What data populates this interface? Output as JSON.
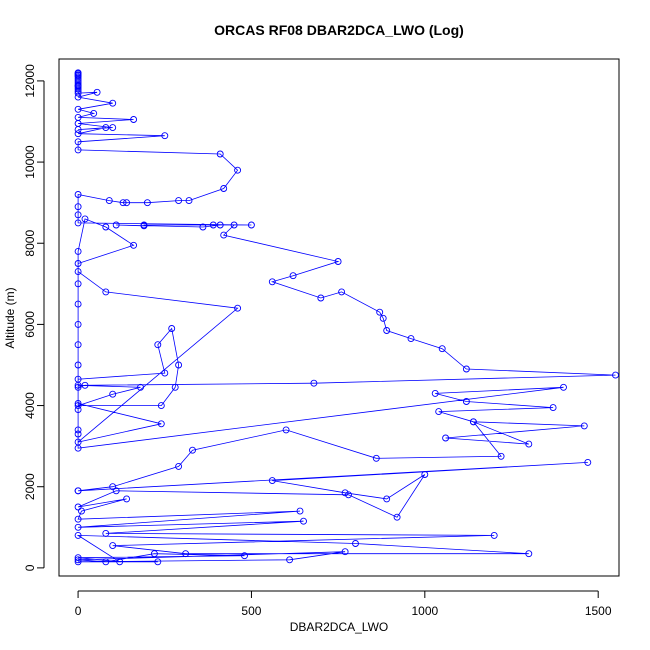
{
  "chart_data": {
    "type": "line",
    "title": "ORCAS RF08 DBAR2DCA_LWO (Log)",
    "xlabel": "DBAR2DCA_LWO",
    "ylabel": "Altitude (m)",
    "xlim": [
      -55,
      1560
    ],
    "ylim": [
      -200,
      12540
    ],
    "x_ticks": [
      0,
      500,
      1000,
      1500
    ],
    "y_ticks": [
      0,
      2000,
      4000,
      6000,
      8000,
      10000,
      12000
    ],
    "grid": false,
    "legend": "none",
    "line_color": "#0000ff",
    "marker": "open-circle",
    "series": [
      {
        "x": [
          0,
          0,
          0,
          0,
          0,
          0,
          0,
          0,
          0,
          0,
          0,
          0,
          0,
          0,
          55,
          0,
          100,
          0,
          45,
          0,
          160,
          0,
          100,
          0,
          80,
          0,
          250,
          0,
          0,
          410,
          460,
          420,
          320,
          290,
          200,
          140,
          130,
          90,
          0,
          0,
          0,
          0,
          500,
          410,
          360,
          110,
          190,
          190,
          390,
          450,
          420,
          750,
          620,
          560,
          700,
          760,
          870,
          880,
          890,
          960,
          1050,
          1120,
          1550,
          680,
          20,
          0,
          0,
          180,
          100,
          0,
          240,
          280,
          290,
          270,
          230,
          250,
          0,
          0,
          240,
          0,
          460,
          80,
          0,
          0,
          160,
          80,
          20,
          0,
          0,
          0,
          0,
          0,
          0,
          0,
          0,
          0,
          0,
          1400,
          1030,
          1120,
          1370,
          1040,
          1140,
          1460,
          1060,
          1300,
          1140,
          1220,
          860,
          600,
          330,
          290,
          100,
          0,
          0,
          1470,
          560,
          770,
          890,
          1000,
          920,
          780,
          110,
          0,
          140,
          10,
          0,
          640,
          0,
          650,
          80,
          1200,
          100,
          310,
          1300,
          800,
          0,
          120,
          0,
          480,
          220,
          80,
          0,
          770,
          610,
          0,
          230
        ]
      }
    ],
    "y": [
      12200,
      12180,
      12150,
      12130,
      12100,
      12050,
      12000,
      11950,
      11900,
      11880,
      11850,
      11800,
      11750,
      11700,
      11720,
      11600,
      11450,
      11300,
      11200,
      11100,
      11050,
      10950,
      10850,
      10800,
      10850,
      10700,
      10650,
      10500,
      10300,
      10200,
      9800,
      9350,
      9050,
      9050,
      9000,
      9000,
      9000,
      9050,
      9200,
      8900,
      8700,
      8500,
      8450,
      8450,
      8400,
      8450,
      8430,
      8450,
      8450,
      8450,
      8200,
      7550,
      7200,
      7050,
      6650,
      6800,
      6300,
      6150,
      5850,
      5650,
      5400,
      4900,
      4750,
      4550,
      4500,
      4450,
      4500,
      4450,
      4280,
      4000,
      4000,
      4450,
      5000,
      5900,
      5500,
      4800,
      4650,
      4050,
      3550,
      3100,
      6400,
      6800,
      7300,
      7500,
      7950,
      8400,
      8600,
      7800,
      7000,
      6500,
      6000,
      5500,
      5000,
      3900,
      3400,
      3300,
      2950,
      4450,
      4300,
      4100,
      3950,
      3850,
      3600,
      3500,
      3200,
      3050,
      3600,
      2750,
      2700,
      3400,
      2900,
      2500,
      2000,
      1900,
      1900,
      2600,
      2150,
      1850,
      1700,
      2300,
      1250,
      1800,
      1900,
      1500,
      1700,
      1400,
      1200,
      1400,
      1000,
      1150,
      850,
      800,
      550,
      350,
      350,
      600,
      800,
      150,
      250,
      300,
      350,
      150,
      200,
      400,
      200,
      150,
      150
    ]
  }
}
